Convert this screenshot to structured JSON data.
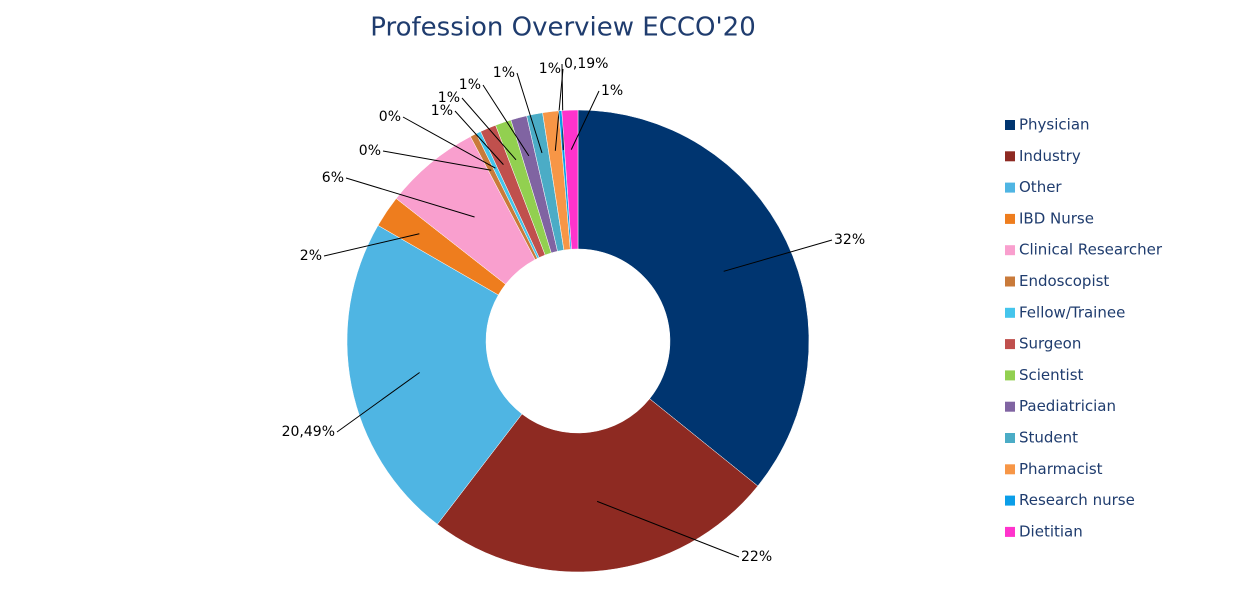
{
  "chart_data": {
    "type": "donut",
    "title": "Profession Overview ECCO'20",
    "categories": [
      "Physician",
      "Industry",
      "Other",
      "IBD Nurse",
      "Clinical Researcher",
      "Endoscopist",
      "Fellow/Trainee",
      "Surgeon",
      "Scientist",
      "Paediatrician",
      "Student",
      "Pharmacist",
      "Research nurse",
      "Dietitian"
    ],
    "values": [
      32,
      22,
      20.49,
      2,
      6,
      0.4,
      0.3,
      1,
      1,
      1,
      1,
      1,
      0.19,
      1
    ],
    "value_labels": [
      "32%",
      "22%",
      "20,49%",
      "2%",
      "6%",
      "0%",
      "0%",
      "1%",
      "1%",
      "1%",
      "1%",
      "1%",
      "0,19%",
      "1%"
    ],
    "colors": [
      "#003570",
      "#8e2a22",
      "#4fb5e3",
      "#ee7d1e",
      "#f99fce",
      "#c97a3a",
      "#45c5ec",
      "#c0504d",
      "#92d050",
      "#8064a2",
      "#4bacc6",
      "#f79646",
      "#0b9ee8",
      "#ff33cc"
    ],
    "legend": "right"
  }
}
